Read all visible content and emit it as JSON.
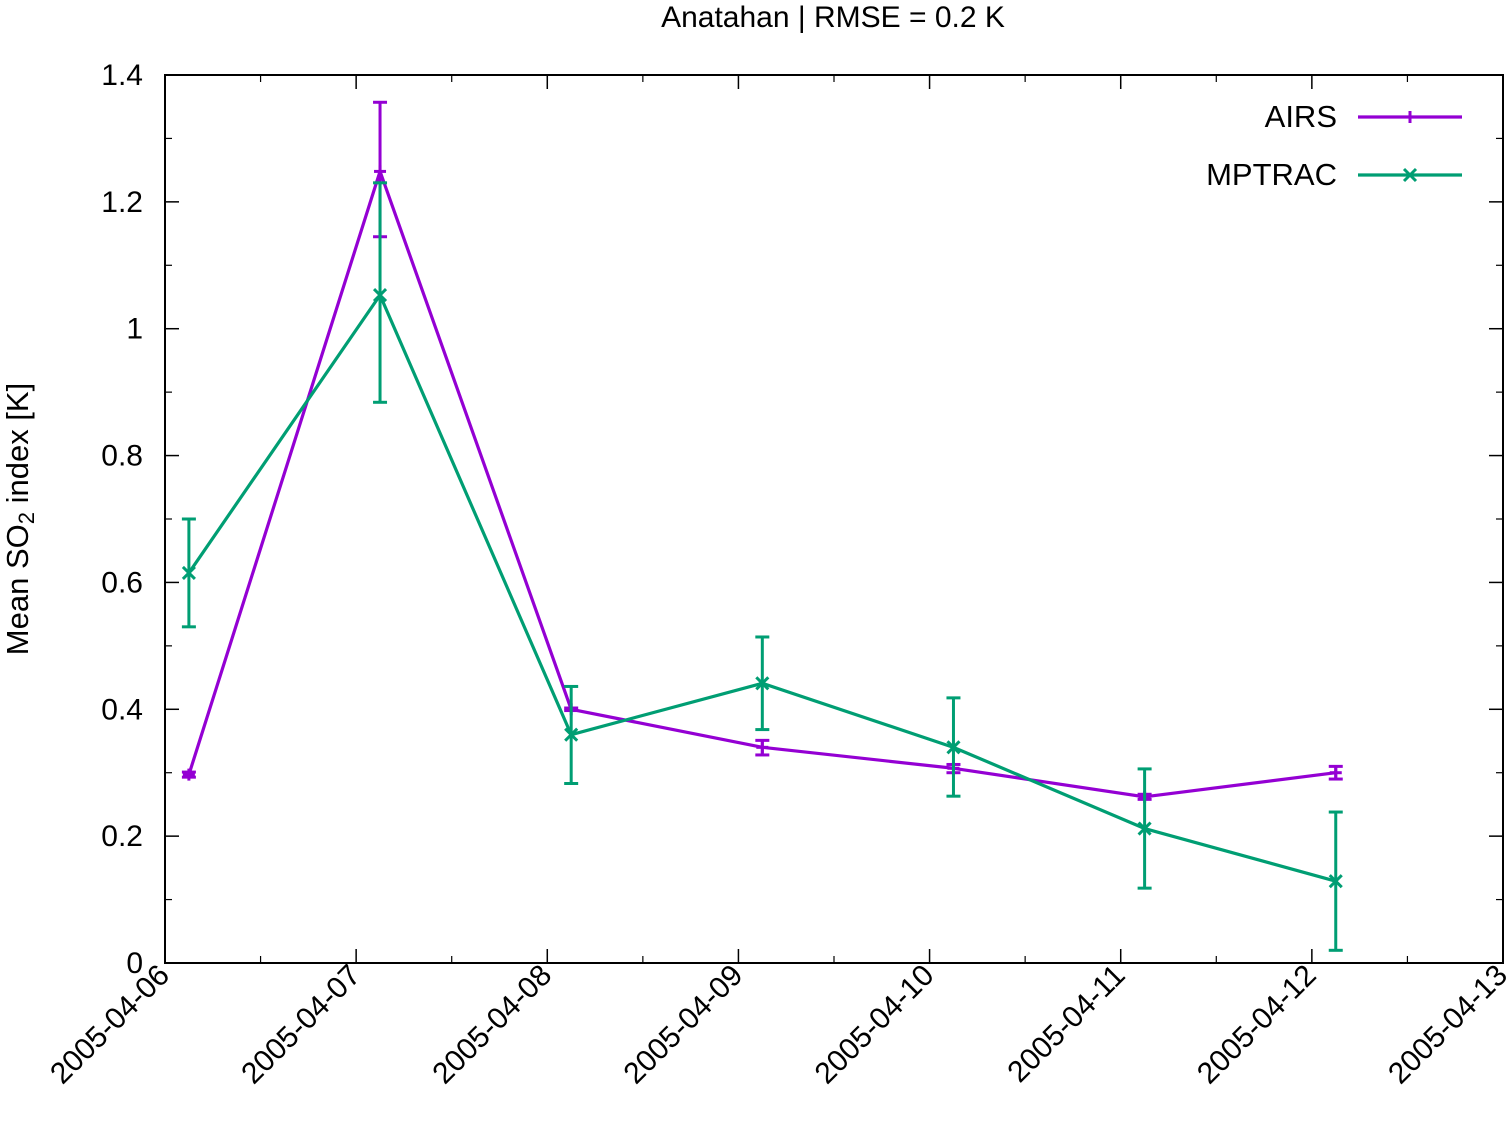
{
  "chart_data": {
    "type": "line",
    "title": "Anatahan | RMSE = 0.2 K",
    "ylabel": {
      "prefix": "Mean SO",
      "subscript": "2",
      "suffix": " index [K]"
    },
    "xlabel": "",
    "x_ticks": [
      "2005-04-06",
      "2005-04-07",
      "2005-04-08",
      "2005-04-09",
      "2005-04-10",
      "2005-04-11",
      "2005-04-12",
      "2005-04-13"
    ],
    "y_ticks": [
      "0",
      "0.2",
      "0.4",
      "0.6",
      "0.8",
      "1",
      "1.2",
      "1.4"
    ],
    "xlim": [
      "2005-04-06",
      "2005-04-13"
    ],
    "ylim": [
      0,
      1.4
    ],
    "grid": false,
    "legend_position": "top-right",
    "series": [
      {
        "name": "AIRS",
        "color": "#9400d3",
        "marker": "plus",
        "x": [
          "2005-04-06T03:00",
          "2005-04-07T03:00",
          "2005-04-08T03:00",
          "2005-04-09T03:00",
          "2005-04-10T03:00",
          "2005-04-11T03:00",
          "2005-04-12T03:00"
        ],
        "y": [
          0.297,
          1.248,
          0.4,
          0.34,
          0.307,
          0.262,
          0.3
        ],
        "err_low": [
          0.293,
          1.145,
          0.398,
          0.328,
          0.3,
          0.258,
          0.29
        ],
        "err_high": [
          0.301,
          1.357,
          0.402,
          0.351,
          0.313,
          0.266,
          0.31
        ]
      },
      {
        "name": "MPTRAC",
        "color": "#009e73",
        "marker": "cross",
        "x": [
          "2005-04-06T03:00",
          "2005-04-07T03:00",
          "2005-04-08T03:00",
          "2005-04-09T03:00",
          "2005-04-10T03:00",
          "2005-04-11T03:00",
          "2005-04-12T03:00"
        ],
        "y": [
          0.615,
          1.053,
          0.36,
          0.441,
          0.34,
          0.212,
          0.129
        ],
        "err_low": [
          0.53,
          0.884,
          0.283,
          0.368,
          0.263,
          0.118,
          0.02
        ],
        "err_high": [
          0.7,
          1.23,
          0.436,
          0.514,
          0.418,
          0.306,
          0.238
        ]
      }
    ]
  }
}
